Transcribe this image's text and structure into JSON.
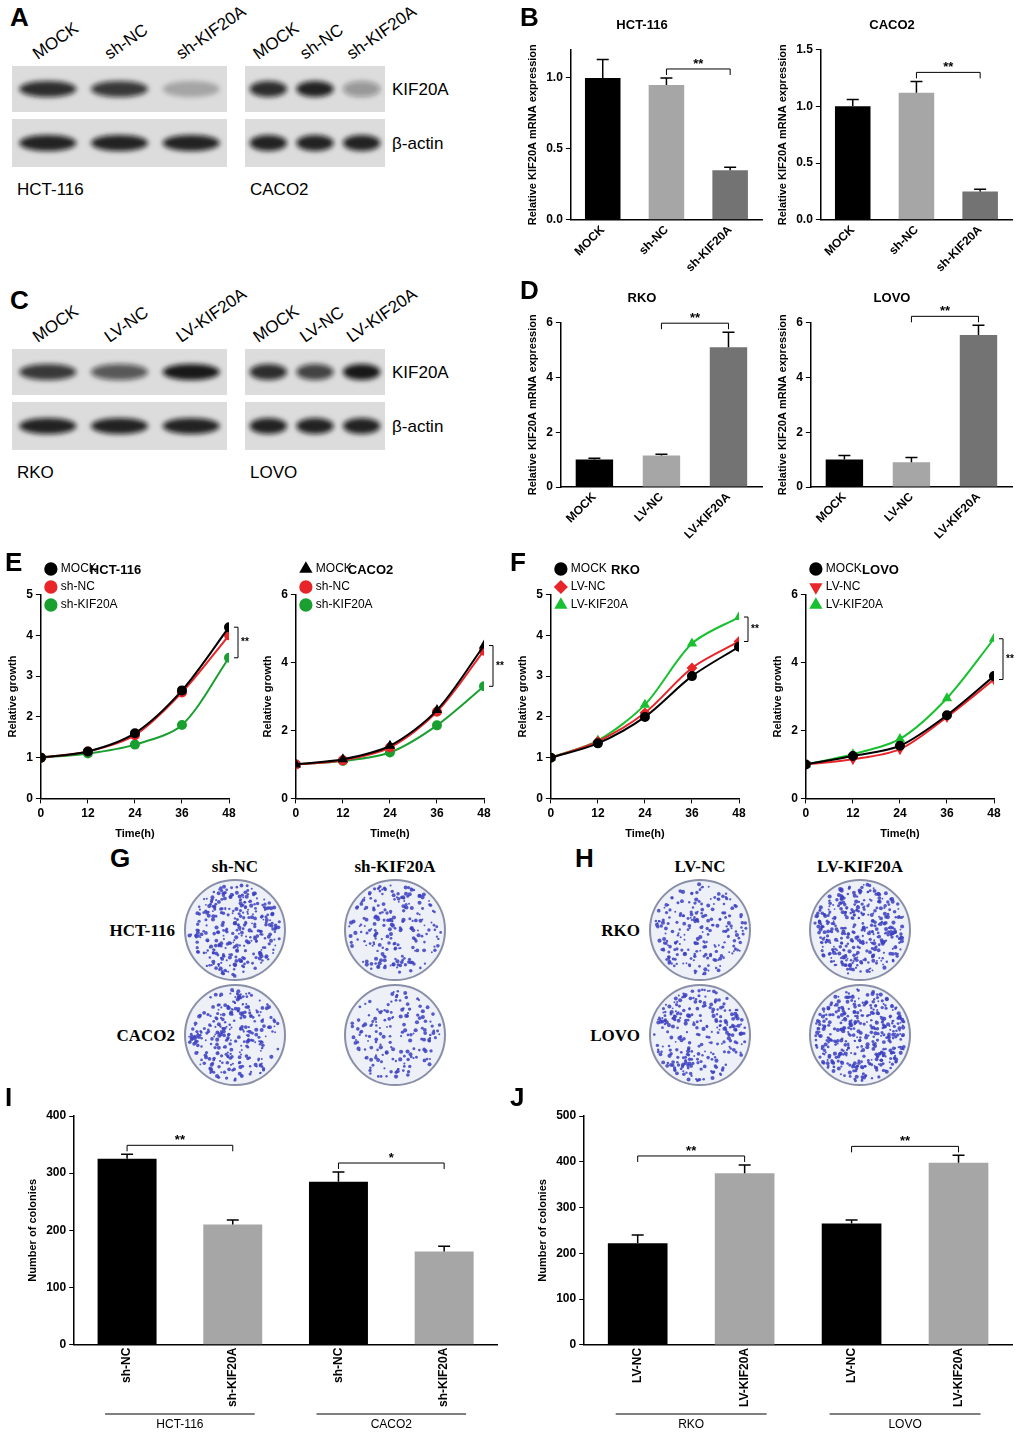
{
  "blots": [
    {
      "panel": "A",
      "row_labels": [
        "KIF20A",
        "β-actin"
      ],
      "sets": [
        {
          "cell_line": "HCT-116",
          "lanes": [
            "MOCK",
            "sh-NC",
            "sh-KIF20A"
          ],
          "intensity": [
            [
              0.85,
              0.8,
              0.25
            ],
            [
              0.9,
              0.9,
              0.9
            ]
          ]
        },
        {
          "cell_line": "CACO2",
          "lanes": [
            "MOCK",
            "sh-NC",
            "sh-KIF20A"
          ],
          "intensity": [
            [
              0.85,
              0.9,
              0.35
            ],
            [
              0.9,
              0.9,
              0.9
            ]
          ]
        }
      ]
    },
    {
      "panel": "C",
      "row_labels": [
        "KIF20A",
        "β-actin"
      ],
      "sets": [
        {
          "cell_line": "RKO",
          "lanes": [
            "MOCK",
            "LV-NC",
            "LV-KIF20A"
          ],
          "intensity": [
            [
              0.8,
              0.65,
              0.95
            ],
            [
              0.9,
              0.9,
              0.9
            ]
          ]
        },
        {
          "cell_line": "LOVO",
          "lanes": [
            "MOCK",
            "LV-NC",
            "LV-KIF20A"
          ],
          "intensity": [
            [
              0.85,
              0.75,
              0.95
            ],
            [
              0.9,
              0.9,
              0.9
            ]
          ]
        }
      ]
    }
  ],
  "chart_data": [
    {
      "panel": "B",
      "type": "bar",
      "title": "HCT-116",
      "y_label": "Relative KIF20A mRNA expression",
      "categories": [
        "MOCK",
        "sh-NC",
        "sh-KIF20A"
      ],
      "values": [
        1.0,
        0.95,
        0.35
      ],
      "errors": [
        0.13,
        0.05,
        0.02
      ],
      "colors": [
        "#000000",
        "#a6a6a6",
        "#737373"
      ],
      "ylim": [
        0,
        1.2
      ],
      "yticks": [
        {
          "value": 0,
          "label": "0.0"
        },
        {
          "value": 0.5,
          "label": "0.5"
        },
        {
          "value": 1,
          "label": "1.0"
        }
      ],
      "grid": false,
      "significance": [
        {
          "text": "**",
          "between": [
            1,
            2
          ]
        }
      ]
    },
    {
      "type": "bar",
      "title": "CACO2",
      "y_label": "Relative KIF20A mRNA expression",
      "categories": [
        "MOCK",
        "sh-NC",
        "sh-KIF20A"
      ],
      "values": [
        1.0,
        1.12,
        0.25
      ],
      "errors": [
        0.06,
        0.1,
        0.02
      ],
      "colors": [
        "#000000",
        "#a6a6a6",
        "#737373"
      ],
      "ylim": [
        0,
        1.5
      ],
      "yticks": [
        {
          "value": 0,
          "label": "0.0"
        },
        {
          "value": 0.5,
          "label": "0.5"
        },
        {
          "value": 1,
          "label": "1.0"
        },
        {
          "value": 1.5,
          "label": "1.5"
        }
      ],
      "grid": false,
      "significance": [
        {
          "text": "**",
          "between": [
            1,
            2
          ]
        }
      ]
    },
    {
      "panel": "D",
      "type": "bar",
      "title": "RKO",
      "y_label": "Relative KIF20A mRNA expression",
      "categories": [
        "MOCK",
        "LV-NC",
        "LV-KIF20A"
      ],
      "values": [
        1.0,
        1.15,
        5.1
      ],
      "errors": [
        0.05,
        0.05,
        0.55
      ],
      "colors": [
        "#000000",
        "#a6a6a6",
        "#737373"
      ],
      "ylim": [
        0,
        6
      ],
      "yticks": [
        0,
        2,
        4,
        6
      ],
      "grid": false,
      "significance": [
        {
          "text": "**",
          "between": [
            1,
            2
          ]
        }
      ]
    },
    {
      "type": "bar",
      "title": "LOVO",
      "y_label": "Relative KIF20A mRNA expression",
      "categories": [
        "MOCK",
        "LV-NC",
        "LV-KIF20A"
      ],
      "values": [
        1.0,
        0.9,
        5.55
      ],
      "errors": [
        0.15,
        0.18,
        0.35
      ],
      "colors": [
        "#000000",
        "#a6a6a6",
        "#737373"
      ],
      "ylim": [
        0,
        6
      ],
      "yticks": [
        0,
        2,
        4,
        6
      ],
      "grid": false,
      "significance": [
        {
          "text": "**",
          "between": [
            1,
            2
          ]
        }
      ]
    },
    {
      "panel": "E",
      "type": "line",
      "title": "HCT-116",
      "x_label": "Time(h)",
      "y_label": "Relative growth",
      "x": [
        0,
        12,
        24,
        36,
        48
      ],
      "series": [
        {
          "name": "MOCK",
          "color": "#000000",
          "marker": "circle",
          "values": [
            1,
            1.15,
            1.6,
            2.65,
            4.2
          ]
        },
        {
          "name": "sh-NC",
          "color": "#e8262a",
          "marker": "circle",
          "values": [
            1,
            1.15,
            1.55,
            2.6,
            4.0
          ]
        },
        {
          "name": "sh-KIF20A",
          "color": "#19a030",
          "marker": "circle",
          "values": [
            1,
            1.1,
            1.32,
            1.8,
            3.45
          ]
        }
      ],
      "xlim": [
        0,
        48
      ],
      "xticks": [
        0,
        12,
        24,
        36,
        48
      ],
      "ylim": [
        0,
        5
      ],
      "yticks": [
        0,
        1,
        2,
        3,
        4,
        5
      ],
      "grid": false,
      "legend": "upper left",
      "significance": [
        {
          "text": "**",
          "between": [
            0,
            2
          ]
        }
      ]
    },
    {
      "type": "line",
      "title": "CACO2",
      "x_label": "Time(h)",
      "y_label": "Relative growth",
      "x": [
        0,
        12,
        24,
        36,
        48
      ],
      "series": [
        {
          "name": "MOCK",
          "color": "#000000",
          "marker": "triangle",
          "values": [
            1,
            1.15,
            1.55,
            2.6,
            4.5
          ]
        },
        {
          "name": "sh-NC",
          "color": "#e8262a",
          "marker": "circle",
          "values": [
            1,
            1.12,
            1.5,
            2.55,
            4.35
          ]
        },
        {
          "name": "sh-KIF20A",
          "color": "#19a030",
          "marker": "circle",
          "values": [
            1,
            1.1,
            1.35,
            2.15,
            3.3
          ]
        }
      ],
      "xlim": [
        0,
        48
      ],
      "xticks": [
        0,
        12,
        24,
        36,
        48
      ],
      "ylim": [
        0,
        6
      ],
      "yticks": [
        0,
        2,
        4,
        6
      ],
      "grid": false,
      "legend": "upper left",
      "significance": [
        {
          "text": "**",
          "between": [
            0,
            2
          ]
        }
      ]
    },
    {
      "panel": "F",
      "type": "line",
      "title": "RKO",
      "x_label": "Time(h)",
      "y_label": "Relative growth",
      "x": [
        0,
        12,
        24,
        36,
        48
      ],
      "series": [
        {
          "name": "MOCK",
          "color": "#000000",
          "marker": "circle",
          "values": [
            1,
            1.35,
            2.0,
            3.0,
            3.72
          ]
        },
        {
          "name": "LV-NC",
          "color": "#e8262a",
          "marker": "diamond",
          "values": [
            1,
            1.4,
            2.1,
            3.2,
            3.85
          ]
        },
        {
          "name": "LV-KIF20A",
          "color": "#19c030",
          "marker": "triangle",
          "values": [
            1,
            1.42,
            2.3,
            3.8,
            4.45
          ]
        }
      ],
      "xlim": [
        0,
        48
      ],
      "xticks": [
        0,
        12,
        24,
        36,
        48
      ],
      "ylim": [
        0,
        5
      ],
      "yticks": [
        0,
        1,
        2,
        3,
        4,
        5
      ],
      "grid": false,
      "legend": "upper left",
      "significance": [
        {
          "text": "**",
          "between": [
            1,
            2
          ]
        }
      ]
    },
    {
      "type": "line",
      "title": "LOVO",
      "x_label": "Time(h)",
      "y_label": "Relative growth",
      "x": [
        0,
        12,
        24,
        36,
        48
      ],
      "series": [
        {
          "name": "MOCK",
          "color": "#000000",
          "marker": "circle",
          "values": [
            1,
            1.25,
            1.55,
            2.45,
            3.6
          ]
        },
        {
          "name": "LV-NC",
          "color": "#e8262a",
          "marker": "triangle-down",
          "values": [
            1,
            1.15,
            1.45,
            2.4,
            3.5
          ]
        },
        {
          "name": "LV-KIF20A",
          "color": "#19c030",
          "marker": "triangle",
          "values": [
            1,
            1.3,
            1.75,
            2.95,
            4.7
          ]
        }
      ],
      "xlim": [
        0,
        48
      ],
      "xticks": [
        0,
        12,
        24,
        36,
        48
      ],
      "ylim": [
        0,
        6
      ],
      "yticks": [
        0,
        2,
        4,
        6
      ],
      "grid": false,
      "legend": "upper left",
      "significance": [
        {
          "text": "**",
          "between": [
            1,
            2
          ]
        }
      ]
    },
    {
      "panel": "I",
      "type": "bar",
      "y_label": "Number of colonies",
      "categories": [
        "sh-NC",
        "sh-KIF20A",
        "sh-NC",
        "sh-KIF20A"
      ],
      "groups": [
        "HCT-116",
        "CACO2"
      ],
      "values": [
        325,
        210,
        285,
        163
      ],
      "errors": [
        8,
        8,
        17,
        9
      ],
      "colors": [
        "#000000",
        "#a6a6a6",
        "#000000",
        "#a6a6a6"
      ],
      "ylim": [
        0,
        400
      ],
      "yticks": [
        0,
        100,
        200,
        300,
        400
      ],
      "grid": false,
      "significance": [
        {
          "text": "**",
          "between": [
            0,
            1
          ]
        },
        {
          "text": "*",
          "between": [
            2,
            3
          ]
        }
      ]
    },
    {
      "panel": "J",
      "type": "bar",
      "y_label": "Number of colonies",
      "categories": [
        "LV-NC",
        "LV-KIF20A",
        "LV-NC",
        "LV-KIF20A"
      ],
      "groups": [
        "RKO",
        "LOVO"
      ],
      "values": [
        222,
        375,
        265,
        398
      ],
      "errors": [
        18,
        18,
        8,
        16
      ],
      "colors": [
        "#000000",
        "#a6a6a6",
        "#000000",
        "#a6a6a6"
      ],
      "ylim": [
        0,
        500
      ],
      "yticks": [
        0,
        100,
        200,
        300,
        400,
        500
      ],
      "grid": false,
      "significance": [
        {
          "text": "**",
          "between": [
            0,
            1
          ]
        },
        {
          "text": "**",
          "between": [
            2,
            3
          ]
        }
      ]
    }
  ],
  "plates": [
    {
      "panel": "G",
      "columns": [
        "sh-NC",
        "sh-KIF20A"
      ],
      "rows": [
        "HCT-116",
        "CACO2"
      ]
    },
    {
      "panel": "H",
      "columns": [
        "LV-NC",
        "LV-KIF20A"
      ],
      "rows": [
        "RKO",
        "LOVO"
      ]
    }
  ]
}
